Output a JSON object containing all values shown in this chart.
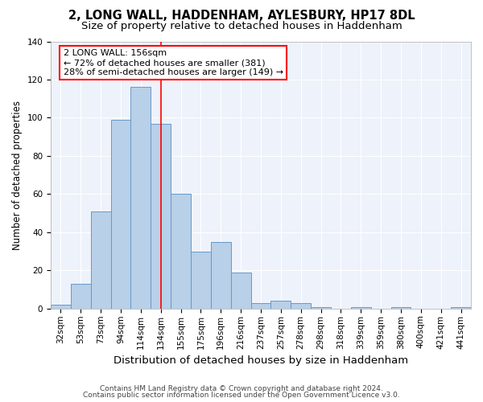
{
  "title1": "2, LONG WALL, HADDENHAM, AYLESBURY, HP17 8DL",
  "title2": "Size of property relative to detached houses in Haddenham",
  "xlabel": "Distribution of detached houses by size in Haddenham",
  "ylabel": "Number of detached properties",
  "footer1": "Contains HM Land Registry data © Crown copyright and database right 2024.",
  "footer2": "Contains public sector information licensed under the Open Government Licence v3.0.",
  "categories": [
    "32sqm",
    "53sqm",
    "73sqm",
    "94sqm",
    "114sqm",
    "134sqm",
    "155sqm",
    "175sqm",
    "196sqm",
    "216sqm",
    "237sqm",
    "257sqm",
    "278sqm",
    "298sqm",
    "318sqm",
    "339sqm",
    "359sqm",
    "380sqm",
    "400sqm",
    "421sqm",
    "441sqm"
  ],
  "values": [
    2,
    13,
    51,
    99,
    116,
    97,
    60,
    30,
    35,
    19,
    3,
    4,
    3,
    1,
    0,
    1,
    0,
    1,
    0,
    0,
    1
  ],
  "bar_color": "#b8d0e8",
  "bar_edge_color": "#6699cc",
  "vline_index": 5.5,
  "vline_color": "red",
  "annotation_text": "2 LONG WALL: 156sqm\n← 72% of detached houses are smaller (381)\n28% of semi-detached houses are larger (149) →",
  "annotation_box_color": "white",
  "annotation_box_edge": "red",
  "ylim": [
    0,
    140
  ],
  "yticks": [
    0,
    20,
    40,
    60,
    80,
    100,
    120,
    140
  ],
  "background_color": "#eef2fa",
  "grid_color": "#ffffff",
  "title_fontsize": 10.5,
  "subtitle_fontsize": 9.5,
  "tick_fontsize": 7.5,
  "ylabel_fontsize": 8.5,
  "xlabel_fontsize": 9.5,
  "annotation_fontsize": 8.0,
  "footer_fontsize": 6.5
}
